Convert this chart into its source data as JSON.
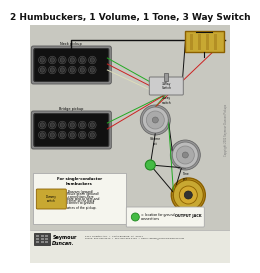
{
  "title": "2 Humbuckers, 1 Volume, 1 Tone, 3 Way Switch",
  "bg_color": "#d8d8d0",
  "title_fontsize": 6.5,
  "title_color": "#111111",
  "footer_address": "5427 Hollister Ave.  •  Santa Barbara, CA  93111\nPhone: 800.966.9610  •  Fax: 800.966.9149  •  Email: wiring@seymourduncan.com",
  "wire_green": "#22aa22",
  "wire_red": "#cc2222",
  "wire_black": "#111111",
  "wire_white": "#ddddbb",
  "wire_yellow": "#ddcc22",
  "cap_color": "#c8a832",
  "pot_color": "#aaaaaa",
  "pot_dark": "#888888",
  "jack_color": "#c8a832",
  "gnd_color": "#44bb44",
  "sd_logo_bg": "#444444",
  "note_bg": "#f5f5ee",
  "diagram_bg": "#c8c8c0",
  "header_bg": "#ffffff"
}
